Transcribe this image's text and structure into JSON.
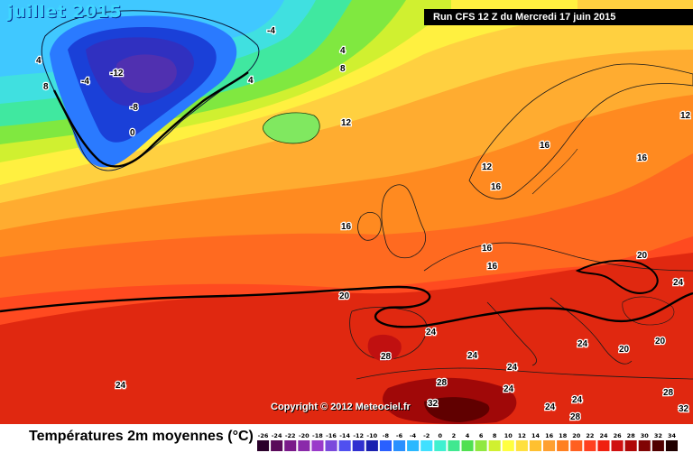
{
  "map": {
    "title": "juillet 2015",
    "run_label": "Run CFS 12 Z du Mercredi 17 juin 2015",
    "copyright": "Copyright © 2012 Meteociel.fr"
  },
  "legend": {
    "title": "Températures 2m moyennes (°C)",
    "ticks": [
      "-26",
      "-24",
      "-22",
      "-20",
      "-18",
      "-16",
      "-14",
      "-12",
      "-10",
      "-8",
      "-6",
      "-4",
      "-2",
      "0",
      "2",
      "4",
      "6",
      "8",
      "10",
      "12",
      "14",
      "16",
      "18",
      "20",
      "22",
      "24",
      "26",
      "28",
      "30",
      "32",
      "34"
    ],
    "colors": [
      "#2a002a",
      "#5a0a5a",
      "#7a1a8a",
      "#8a2aaa",
      "#9a3aca",
      "#7a4adc",
      "#5050f0",
      "#3030d0",
      "#1a20b0",
      "#2a60ff",
      "#2a90ff",
      "#2ab8ff",
      "#40e0ff",
      "#40f0d0",
      "#40e890",
      "#50e050",
      "#90e840",
      "#d0f030",
      "#ffff40",
      "#ffe040",
      "#ffc030",
      "#ffa030",
      "#ff8020",
      "#ff6020",
      "#ff4020",
      "#f02010",
      "#d01010",
      "#b00808",
      "#800404",
      "#500000",
      "#200000"
    ]
  },
  "isotherm_labels": [
    {
      "text": "-4"
    },
    {
      "text": "-4"
    },
    {
      "text": "-12"
    },
    {
      "text": "-8"
    },
    {
      "text": "0"
    },
    {
      "text": "4"
    },
    {
      "text": "4"
    },
    {
      "text": "4"
    },
    {
      "text": "8"
    },
    {
      "text": "8"
    },
    {
      "text": "12"
    },
    {
      "text": "12"
    },
    {
      "text": "12"
    },
    {
      "text": "16"
    },
    {
      "text": "16"
    },
    {
      "text": "16"
    },
    {
      "text": "16"
    },
    {
      "text": "16"
    },
    {
      "text": "16"
    },
    {
      "text": "20"
    },
    {
      "text": "20"
    },
    {
      "text": "20"
    },
    {
      "text": "20"
    },
    {
      "text": "24"
    },
    {
      "text": "24"
    },
    {
      "text": "24"
    },
    {
      "text": "24"
    },
    {
      "text": "24"
    },
    {
      "text": "24"
    },
    {
      "text": "24"
    },
    {
      "text": "24"
    },
    {
      "text": "24"
    },
    {
      "text": "28"
    },
    {
      "text": "28"
    },
    {
      "text": "28"
    },
    {
      "text": "28"
    },
    {
      "text": "32"
    },
    {
      "text": "32"
    }
  ]
}
